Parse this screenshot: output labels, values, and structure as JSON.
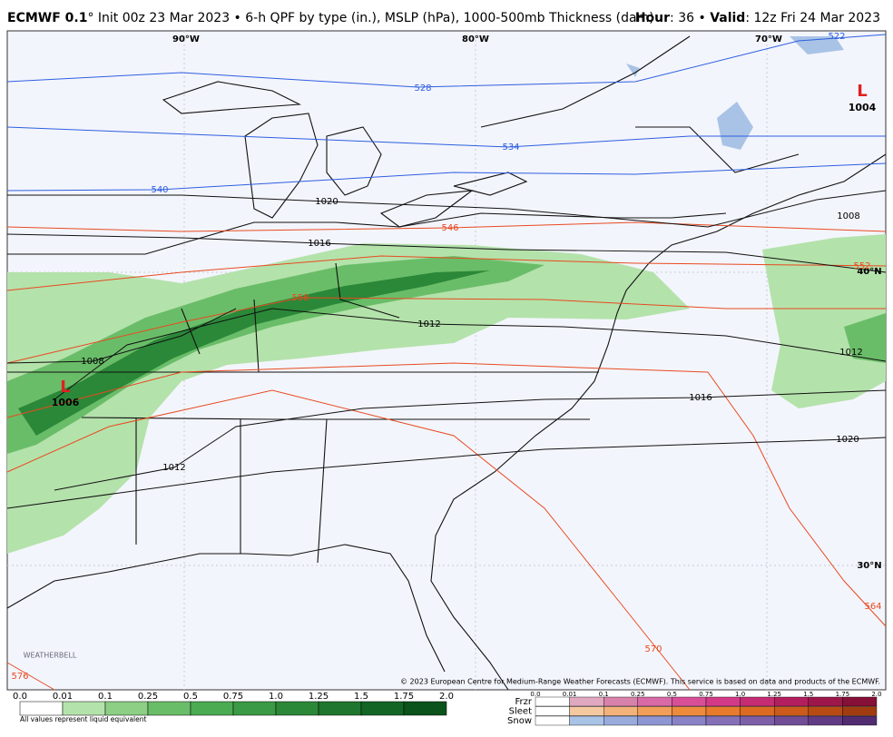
{
  "header": {
    "brand": "ECMWF 0.1",
    "title": "° Init 00z 23 Mar 2023 • 6-h QPF by type (in.), MSLP (hPa), 1000-500mb Thickness (dam)",
    "hour_label": "Hour",
    "hour_value": ": 36 • ",
    "valid_label": "Valid",
    "valid_value": ": 12z Fri 24 Mar 2023"
  },
  "map": {
    "lon_labels": [
      "90°W",
      "80°W",
      "70°W"
    ],
    "lat_labels": [
      "40°N",
      "30°N"
    ],
    "thickness_labels": [
      522,
      528,
      534,
      540,
      546,
      552,
      558,
      564,
      570,
      576
    ],
    "pressure_labels": [
      1020,
      1016,
      1012,
      1008,
      1006,
      1004,
      1008,
      1012,
      1016,
      1020,
      1012
    ],
    "lows": [
      "L",
      "L"
    ],
    "logo": "WEATHERBELL",
    "copyright": "© 2023 European Centre for Medium-Range Weather Forecasts (ECMWF). This service is based on data and products of the ECMWF."
  },
  "legend": {
    "rain_labels": [
      "0.0",
      "0.01",
      "0.1",
      "0.25",
      "0.5",
      "0.75",
      "1.0",
      "1.25",
      "1.5",
      "1.75",
      "2.0"
    ],
    "rain_colors": [
      "#ffffff",
      "#b4e2ab",
      "#8ccf85",
      "#6abd68",
      "#4aab52",
      "#3b9a45",
      "#2b8838",
      "#1f762e",
      "#136525",
      "#0a531b"
    ],
    "note": "All values represent liquid equivalent",
    "mix_labels": [
      "0.0",
      "0.01",
      "0.1",
      "0.25",
      "0.5",
      "0.75",
      "1.0",
      "1.25",
      "1.5",
      "1.75",
      "2.0"
    ],
    "types": [
      "Frzr",
      "Sleet",
      "Snow"
    ],
    "type_colors": [
      [
        "#ffffff",
        "#e0a9c0",
        "#d882ab",
        "#d86aa6",
        "#d84f98",
        "#d23a88",
        "#c52c74",
        "#b31f5e",
        "#9e174b",
        "#861037"
      ],
      [
        "#ffffff",
        "#f5c9a0",
        "#f3b27a",
        "#f29d58",
        "#ee8a3c",
        "#e77a2c",
        "#dd6a22",
        "#cc5a1a",
        "#b84a14",
        "#a03c10"
      ],
      [
        "#ffffff",
        "#a9c3e6",
        "#98abdc",
        "#8d96d2",
        "#8a82c6",
        "#8570b8",
        "#7d5fa8",
        "#704d96",
        "#613c84",
        "#512c70"
      ]
    ]
  }
}
